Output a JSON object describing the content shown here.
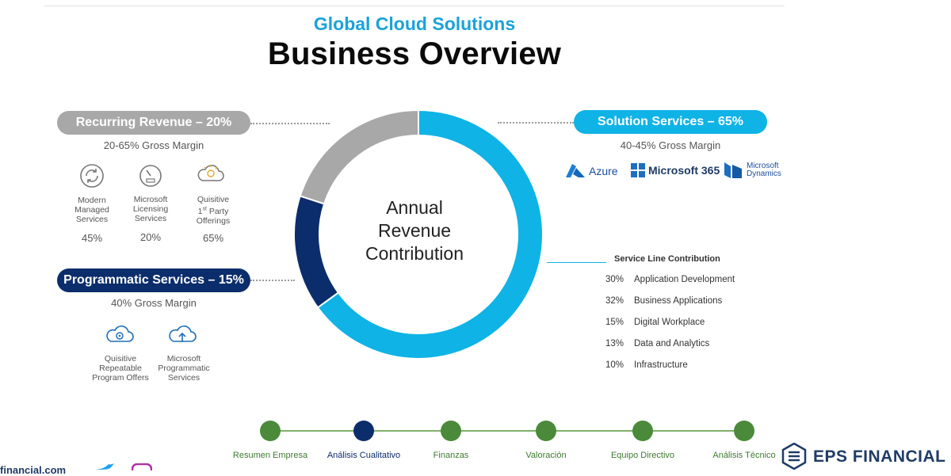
{
  "header": {
    "subtitle": "Global Cloud Solutions",
    "title": "Business Overview"
  },
  "donut": {
    "center_lines": [
      "Annual",
      "Revenue",
      "Contribution"
    ],
    "segments": [
      {
        "name": "Solution Services",
        "percent": 65,
        "color": "#0fb3e6"
      },
      {
        "name": "Programmatic Services",
        "percent": 15,
        "color": "#0c2d6b"
      },
      {
        "name": "Recurring Revenue",
        "percent": 20,
        "color": "#a8a8a8"
      }
    ]
  },
  "recurring": {
    "label": "Recurring Revenue – 20%",
    "margin": "20-65% Gross Margin",
    "items": [
      {
        "icon": "managed-services-icon",
        "label_lines": [
          "Modern",
          "Managed",
          "Services"
        ],
        "pct": "45%"
      },
      {
        "icon": "licensing-meter-icon",
        "label_lines": [
          "Microsoft",
          "Licensing",
          "Services"
        ],
        "pct": "20%"
      },
      {
        "icon": "cloud-bulb-icon",
        "label_lines": [
          "Quisitive",
          "1st Party",
          "Offerings"
        ],
        "pct": "65%"
      }
    ]
  },
  "programmatic": {
    "label": "Programmatic Services – 15%",
    "margin": "40% Gross Margin",
    "items": [
      {
        "icon": "cloud-gear-icon",
        "label_lines": [
          "Quisitive",
          "Repeatable",
          "Program Offers"
        ]
      },
      {
        "icon": "cloud-upload-icon",
        "label_lines": [
          "Microsoft",
          "Programmatic",
          "Services"
        ]
      }
    ]
  },
  "solution": {
    "label": "Solution Services – 65%",
    "margin": "40-45% Gross Margin",
    "logos": {
      "azure": "Azure",
      "m365": "Microsoft 365",
      "dynamics_lines": [
        "Microsoft",
        "Dynamics"
      ]
    }
  },
  "service_line": {
    "title": "Service Line Contribution",
    "rows": [
      {
        "pct": "30%",
        "name": "Application Development"
      },
      {
        "pct": "32%",
        "name": "Business Applications"
      },
      {
        "pct": "15%",
        "name": "Digital Workplace"
      },
      {
        "pct": "13%",
        "name": "Data and Analytics"
      },
      {
        "pct": "10%",
        "name": "Infrastructure"
      }
    ]
  },
  "nav": {
    "items": [
      {
        "label": "Resumen Empresa",
        "active": false
      },
      {
        "label": "Análisis Cualitativo",
        "active": true
      },
      {
        "label": "Finanzas",
        "active": false
      },
      {
        "label": "Valoración",
        "active": false
      },
      {
        "label": "Equipo Directivo",
        "active": false
      },
      {
        "label": "Análisis Técnico",
        "active": false
      }
    ],
    "colors": {
      "inactive": "#4a8a3a",
      "active": "#0c2d6b",
      "line": "#7fb069"
    }
  },
  "footer": {
    "brand": "EPS FINANCIAL",
    "website": "financial.com"
  }
}
